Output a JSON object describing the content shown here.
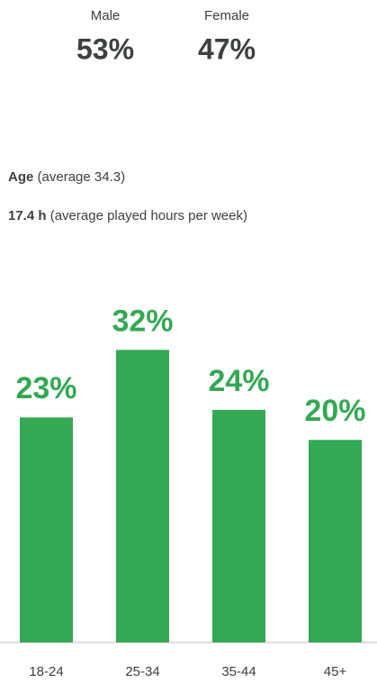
{
  "gender": [
    {
      "label": "Male",
      "share": "53%"
    },
    {
      "label": "Female",
      "share": "47%"
    }
  ],
  "age": {
    "label": "Age",
    "detail": "(average 34.3)"
  },
  "hours": {
    "label": "17.4 h",
    "detail": "(average played hours per week)"
  },
  "chart_data": {
    "type": "bar",
    "categories": [
      "18-24",
      "25-34",
      "35-44",
      "45+"
    ],
    "values": [
      23,
      32,
      24,
      20
    ],
    "value_labels": [
      "23%",
      "32%",
      "24%",
      "20%"
    ],
    "color": "#34a853",
    "ylim": [
      -7,
      33
    ]
  }
}
